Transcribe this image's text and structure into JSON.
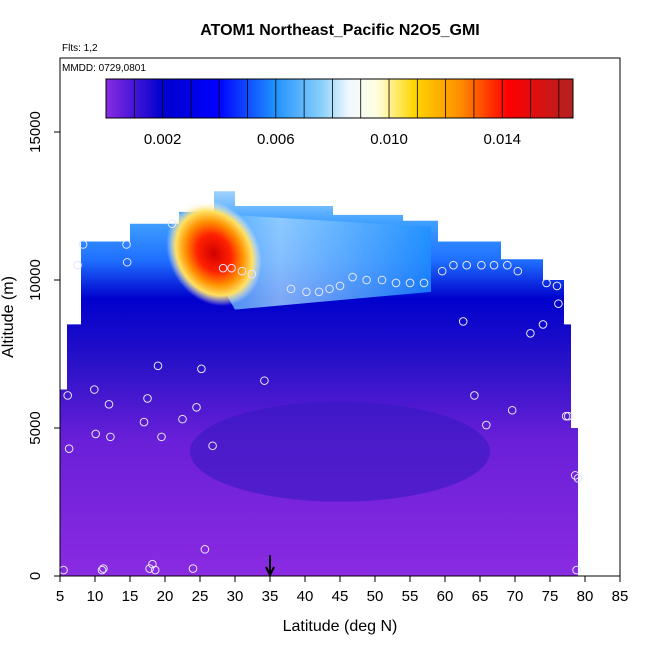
{
  "chart_data": {
    "type": "heatmap",
    "title": "ATOM1 Northeast_Pacific N2O5_GMI",
    "annotations": {
      "flights": "Flts: 1,2",
      "dates": "MMDD: 0729,0801"
    },
    "xlabel": "Latitude (deg N)",
    "ylabel": "Altitude (m)",
    "xlim": [
      5,
      85
    ],
    "ylim": [
      0,
      17500
    ],
    "x_ticks": [
      "5",
      "10",
      "15",
      "20",
      "25",
      "30",
      "35",
      "40",
      "45",
      "50",
      "55",
      "60",
      "65",
      "70",
      "75",
      "80",
      "85"
    ],
    "y_ticks": [
      "0",
      "5000",
      "10000",
      "15000"
    ],
    "colorbar": {
      "range": [
        0,
        0.0165
      ],
      "ticks": [
        "0.002",
        "0.006",
        "0.010",
        "0.014"
      ],
      "colors": [
        "#8a2be2",
        "#0000cd",
        "#1e90ff",
        "#87cefa",
        "#f0f8ff",
        "#ffffe0",
        "#ffd700",
        "#ff8c00",
        "#ff0000",
        "#b22222"
      ]
    },
    "marker": {
      "type": "arrow",
      "x": 35
    },
    "field": {
      "x_range": [
        5,
        79
      ],
      "y_range": [
        0,
        13000
      ],
      "description_levels": [
        {
          "lat": 5,
          "top_alt": 6300
        },
        {
          "lat": 6,
          "top_alt": 8500
        },
        {
          "lat": 8,
          "top_alt": 11300
        },
        {
          "lat": 15,
          "top_alt": 11900
        },
        {
          "lat": 22,
          "top_alt": 12300
        },
        {
          "lat": 27,
          "top_alt": 13000
        },
        {
          "lat": 30,
          "top_alt": 12500
        },
        {
          "lat": 44,
          "top_alt": 12200
        },
        {
          "lat": 54,
          "top_alt": 12000
        },
        {
          "lat": 59,
          "top_alt": 11300
        },
        {
          "lat": 68,
          "top_alt": 10700
        },
        {
          "lat": 74,
          "top_alt": 10000
        },
        {
          "lat": 77,
          "top_alt": 8500
        },
        {
          "lat": 78,
          "top_alt": 5000
        },
        {
          "lat": 79,
          "top_alt": 3300
        }
      ]
    },
    "points": [
      {
        "x": 5.5,
        "y": 200
      },
      {
        "x": 6.1,
        "y": 6100
      },
      {
        "x": 6.3,
        "y": 4300
      },
      {
        "x": 7.5,
        "y": 10500
      },
      {
        "x": 8.3,
        "y": 11200
      },
      {
        "x": 9.9,
        "y": 6300
      },
      {
        "x": 10.1,
        "y": 4800
      },
      {
        "x": 11.0,
        "y": 200
      },
      {
        "x": 11.2,
        "y": 250
      },
      {
        "x": 12.0,
        "y": 5800
      },
      {
        "x": 12.2,
        "y": 4700
      },
      {
        "x": 14.5,
        "y": 11200
      },
      {
        "x": 14.6,
        "y": 10600
      },
      {
        "x": 17.0,
        "y": 5200
      },
      {
        "x": 17.5,
        "y": 6000
      },
      {
        "x": 17.8,
        "y": 250
      },
      {
        "x": 18.2,
        "y": 400
      },
      {
        "x": 18.6,
        "y": 200
      },
      {
        "x": 19.0,
        "y": 7100
      },
      {
        "x": 19.5,
        "y": 4700
      },
      {
        "x": 21.0,
        "y": 11900
      },
      {
        "x": 22.5,
        "y": 5300
      },
      {
        "x": 24.0,
        "y": 250
      },
      {
        "x": 24.5,
        "y": 5700
      },
      {
        "x": 25.2,
        "y": 7000
      },
      {
        "x": 25.7,
        "y": 900
      },
      {
        "x": 26.8,
        "y": 4400
      },
      {
        "x": 28.3,
        "y": 10400
      },
      {
        "x": 29.5,
        "y": 10400
      },
      {
        "x": 31.0,
        "y": 10300
      },
      {
        "x": 32.4,
        "y": 10200
      },
      {
        "x": 34.2,
        "y": 6600
      },
      {
        "x": 38.0,
        "y": 9700
      },
      {
        "x": 40.2,
        "y": 9600
      },
      {
        "x": 42.0,
        "y": 9600
      },
      {
        "x": 43.5,
        "y": 9700
      },
      {
        "x": 45.0,
        "y": 9800
      },
      {
        "x": 46.8,
        "y": 10100
      },
      {
        "x": 48.8,
        "y": 10000
      },
      {
        "x": 51.0,
        "y": 10000
      },
      {
        "x": 53.0,
        "y": 9900
      },
      {
        "x": 55.0,
        "y": 9900
      },
      {
        "x": 57.0,
        "y": 9900
      },
      {
        "x": 59.6,
        "y": 10300
      },
      {
        "x": 61.2,
        "y": 10500
      },
      {
        "x": 62.6,
        "y": 8600
      },
      {
        "x": 63.1,
        "y": 10500
      },
      {
        "x": 64.2,
        "y": 6100
      },
      {
        "x": 65.2,
        "y": 10500
      },
      {
        "x": 65.9,
        "y": 5100
      },
      {
        "x": 67.0,
        "y": 10500
      },
      {
        "x": 68.9,
        "y": 10500
      },
      {
        "x": 69.6,
        "y": 5600
      },
      {
        "x": 70.4,
        "y": 10300
      },
      {
        "x": 72.2,
        "y": 8200
      },
      {
        "x": 74.0,
        "y": 8500
      },
      {
        "x": 74.5,
        "y": 9900
      },
      {
        "x": 76.0,
        "y": 9800
      },
      {
        "x": 76.2,
        "y": 9200
      },
      {
        "x": 77.3,
        "y": 5400
      },
      {
        "x": 77.6,
        "y": 5400
      },
      {
        "x": 78.6,
        "y": 3400
      },
      {
        "x": 79.0,
        "y": 3300
      },
      {
        "x": 78.8,
        "y": 200
      }
    ]
  }
}
